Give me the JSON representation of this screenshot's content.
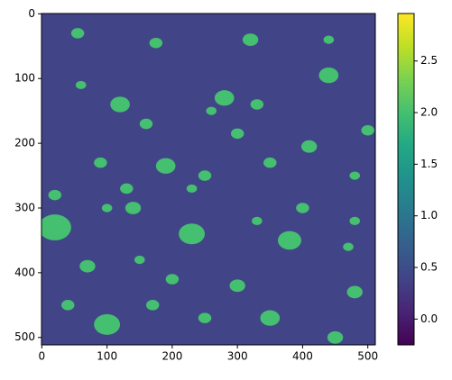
{
  "chart_data": {
    "type": "image",
    "colormap": "viridis",
    "xlim": [
      -0.5,
      511.5
    ],
    "ylim": [
      511.5,
      -0.5
    ],
    "xticks": [
      0,
      100,
      200,
      300,
      400,
      500
    ],
    "yticks": [
      0,
      100,
      200,
      300,
      400,
      500
    ],
    "clim": [
      -0.25,
      2.96
    ],
    "cticks": [
      {
        "value": 0,
        "label": "0.0"
      },
      {
        "value": 0.5,
        "label": "0.5"
      },
      {
        "value": 1,
        "label": "1.0"
      },
      {
        "value": 1.5,
        "label": "1.5"
      },
      {
        "value": 2,
        "label": "2.0"
      },
      {
        "value": 2.5,
        "label": "2.5"
      }
    ],
    "background_value": 0.4,
    "blob_value": 2.0,
    "blobs": [
      {
        "x": 380,
        "y": 350,
        "r": 18
      },
      {
        "x": 140,
        "y": 300,
        "r": 12
      },
      {
        "x": 20,
        "y": 330,
        "r": 25
      },
      {
        "x": 230,
        "y": 340,
        "r": 20
      },
      {
        "x": 280,
        "y": 130,
        "r": 15
      },
      {
        "x": 190,
        "y": 235,
        "r": 15
      },
      {
        "x": 100,
        "y": 480,
        "r": 20
      },
      {
        "x": 300,
        "y": 420,
        "r": 12
      },
      {
        "x": 350,
        "y": 470,
        "r": 15
      },
      {
        "x": 120,
        "y": 140,
        "r": 15
      },
      {
        "x": 440,
        "y": 95,
        "r": 15
      },
      {
        "x": 160,
        "y": 170,
        "r": 10
      },
      {
        "x": 300,
        "y": 185,
        "r": 10
      },
      {
        "x": 480,
        "y": 430,
        "r": 12
      },
      {
        "x": 40,
        "y": 450,
        "r": 10
      },
      {
        "x": 260,
        "y": 150,
        "r": 8
      },
      {
        "x": 70,
        "y": 390,
        "r": 12
      },
      {
        "x": 200,
        "y": 410,
        "r": 10
      },
      {
        "x": 410,
        "y": 205,
        "r": 12
      },
      {
        "x": 130,
        "y": 270,
        "r": 10
      },
      {
        "x": 500,
        "y": 180,
        "r": 10
      },
      {
        "x": 470,
        "y": 360,
        "r": 8
      },
      {
        "x": 55,
        "y": 30,
        "r": 10
      },
      {
        "x": 175,
        "y": 45,
        "r": 10
      },
      {
        "x": 320,
        "y": 40,
        "r": 12
      },
      {
        "x": 440,
        "y": 40,
        "r": 8
      },
      {
        "x": 60,
        "y": 110,
        "r": 8
      },
      {
        "x": 350,
        "y": 230,
        "r": 10
      },
      {
        "x": 250,
        "y": 250,
        "r": 10
      },
      {
        "x": 90,
        "y": 230,
        "r": 10
      },
      {
        "x": 400,
        "y": 300,
        "r": 10
      },
      {
        "x": 230,
        "y": 270,
        "r": 8
      },
      {
        "x": 150,
        "y": 380,
        "r": 8
      },
      {
        "x": 250,
        "y": 470,
        "r": 10
      },
      {
        "x": 480,
        "y": 320,
        "r": 8
      },
      {
        "x": 20,
        "y": 280,
        "r": 10
      },
      {
        "x": 330,
        "y": 320,
        "r": 8
      },
      {
        "x": 100,
        "y": 300,
        "r": 8
      },
      {
        "x": 450,
        "y": 500,
        "r": 12
      },
      {
        "x": 170,
        "y": 450,
        "r": 10
      },
      {
        "x": 480,
        "y": 250,
        "r": 8
      },
      {
        "x": 330,
        "y": 140,
        "r": 10
      }
    ]
  }
}
